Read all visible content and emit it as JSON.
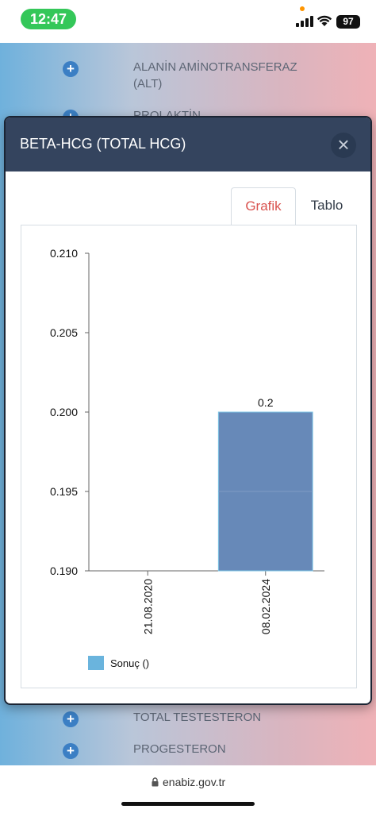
{
  "status_bar": {
    "time": "12:47",
    "battery": "97"
  },
  "background_list": {
    "items_top": [
      {
        "label": "ALANİN AMİNOTRANSFERAZ (ALT)",
        "line1": "ALANİN AMİNOTRANSFERAZ",
        "line2": "(ALT)"
      },
      {
        "label": "PROLAKTİN"
      }
    ],
    "items_bottom": [
      {
        "label": "TOTAL TESTESTERON"
      },
      {
        "label": "PROGESTERON"
      }
    ]
  },
  "modal": {
    "title": "BETA-HCG (TOTAL HCG)",
    "close_symbol": "×",
    "tabs": [
      {
        "label": "Grafik",
        "active": true
      },
      {
        "label": "Tablo",
        "active": false
      }
    ]
  },
  "chart_data": {
    "type": "bar",
    "categories": [
      "21.08.2020",
      "08.02.2024"
    ],
    "series": [
      {
        "name": "Sonuç ()",
        "values": [
          null,
          0.2
        ],
        "color": "#6789b8"
      }
    ],
    "data_labels": [
      "",
      "0.2"
    ],
    "ylim": [
      0.19,
      0.21
    ],
    "yticks": [
      "0.190",
      "0.195",
      "0.200",
      "0.205",
      "0.210"
    ],
    "ytick_values": [
      0.19,
      0.195,
      0.2,
      0.205,
      0.21
    ],
    "legend": {
      "label": "Sonuç ()",
      "position": "bottom-left",
      "swatch_color": "#6ab4dd"
    },
    "grid": false
  },
  "url_bar": {
    "url": "enabiz.gov.tr"
  },
  "colors": {
    "accent_tab": "#d9534f",
    "modal_header": "#34445e",
    "plus_icon": "#3b7fc4"
  }
}
